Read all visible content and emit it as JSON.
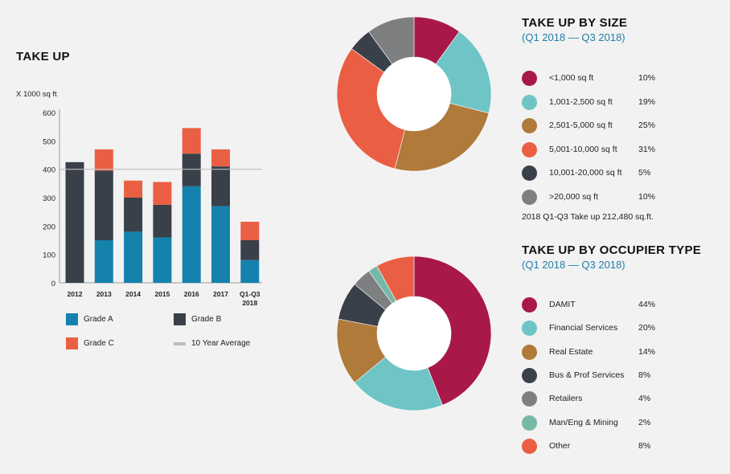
{
  "colors": {
    "grade_a": "#1581ad",
    "grade_b": "#3a4049",
    "grade_c": "#ea5f43",
    "avg_line": "#bdbdbd",
    "size": [
      "#a8194a",
      "#6fc5c6",
      "#b07a3b",
      "#ea5f43",
      "#3a4049",
      "#7d7f80"
    ],
    "occupier": [
      "#a8194a",
      "#6fc5c6",
      "#b07a3b",
      "#3a4049",
      "#7d7f80",
      "#76b8a6",
      "#ea5f43"
    ]
  },
  "chart_data": [
    {
      "type": "bar",
      "title": "TAKE UP",
      "ylabel": "X 1000 sq ft",
      "ylim": [
        0,
        600
      ],
      "yticks": [
        "0",
        "100",
        "200",
        "300",
        "400",
        "500",
        "600"
      ],
      "categories": [
        "2012",
        "2013",
        "2014",
        "2015",
        "2016",
        "2017",
        "Q1-Q3 2018"
      ],
      "category_lines": [
        [
          "2012"
        ],
        [
          "2013"
        ],
        [
          "2014"
        ],
        [
          "2015"
        ],
        [
          "2016"
        ],
        [
          "2017"
        ],
        [
          "Q1-Q3",
          "2018"
        ]
      ],
      "series": [
        {
          "name": "Grade A",
          "values": [
            0,
            150,
            180,
            160,
            340,
            270,
            80
          ]
        },
        {
          "name": "Grade B",
          "values": [
            425,
            245,
            120,
            115,
            115,
            140,
            70
          ]
        },
        {
          "name": "Grade C",
          "values": [
            0,
            75,
            60,
            80,
            90,
            60,
            65
          ]
        }
      ],
      "average": {
        "name": "10 Year Average",
        "value": 400
      }
    },
    {
      "type": "pie",
      "title": "TAKE UP BY SIZE",
      "subtitle": "(Q1 2018 — Q3 2018)",
      "labels": [
        "<1,000 sq ft",
        "1,001-2,500 sq ft",
        "2,501-5,000 sq ft",
        "5,001-10,000 sq ft",
        "10,001-20,000 sq ft",
        ">20,000 sq ft"
      ],
      "values": [
        10,
        19,
        25,
        31,
        5,
        10
      ],
      "pct_labels": [
        "10%",
        "19%",
        "25%",
        "31%",
        "5%",
        "10%"
      ],
      "note": "2018 Q1-Q3 Take up 212,480 sq.ft."
    },
    {
      "type": "pie",
      "title": "TAKE UP BY OCCUPIER TYPE",
      "subtitle": "(Q1 2018 — Q3 2018)",
      "labels": [
        "DAMIT",
        "Financial Services",
        "Real Estate",
        "Bus & Prof Services",
        "Retailers",
        "Man/Eng & Mining",
        "Other"
      ],
      "values": [
        44,
        20,
        14,
        8,
        4,
        2,
        8
      ],
      "pct_labels": [
        "44%",
        "20%",
        "14%",
        "8%",
        "4%",
        "2%",
        "8%"
      ]
    }
  ]
}
